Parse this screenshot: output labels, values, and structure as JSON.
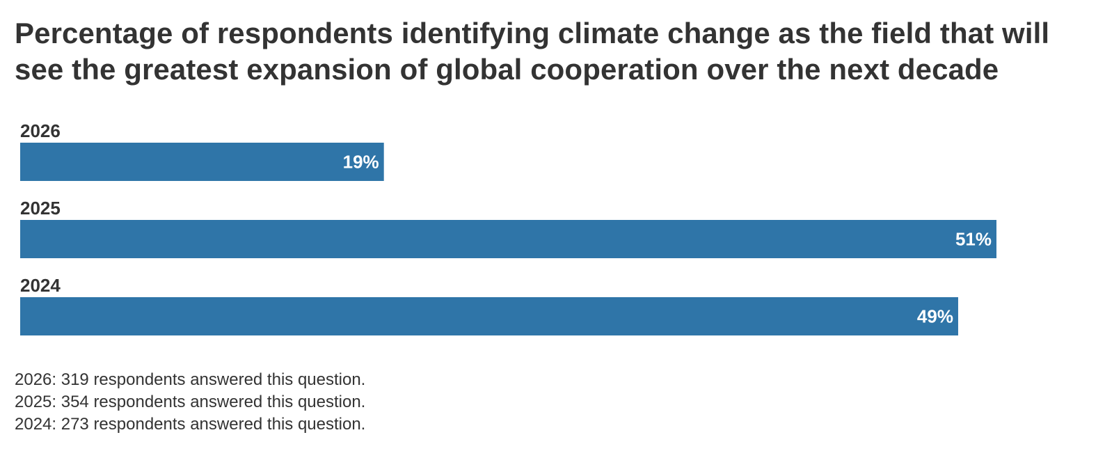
{
  "chart_data": {
    "type": "bar",
    "orientation": "horizontal",
    "title": "Percentage of respondents identifying climate change as the field that will see the greatest expansion of global cooperation over the next decade",
    "categories": [
      "2026",
      "2025",
      "2024"
    ],
    "values": [
      19,
      51,
      49
    ],
    "value_labels": [
      "19%",
      "51%",
      "49%"
    ],
    "unit": "%",
    "xlim": [
      0,
      51
    ],
    "grid": false,
    "bar_color": "#2f75a8",
    "label_color": "#ffffff"
  },
  "notes": [
    "2026: 319 respondents answered this question.",
    "2025: 354 respondents answered this question.",
    "2024: 273 respondents answered this question."
  ]
}
